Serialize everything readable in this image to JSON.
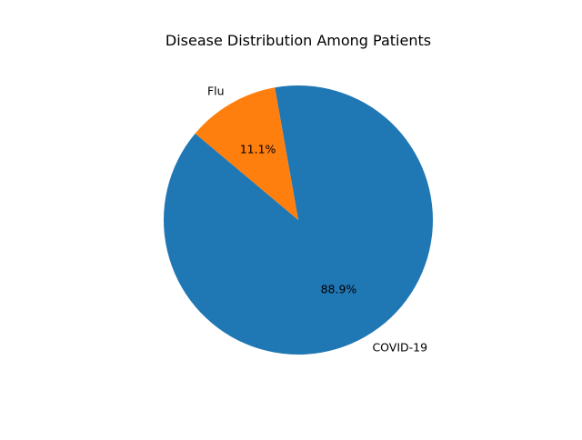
{
  "chart_data": {
    "type": "pie",
    "title": "Disease Distribution Among Patients",
    "labels": [
      "COVID-19",
      "Flu"
    ],
    "values": [
      88.9,
      11.1
    ],
    "percent_labels": [
      "88.9%",
      "11.1%"
    ],
    "colors": [
      "#1f77b4",
      "#ff7f0e"
    ],
    "start_angle_deg": 140,
    "direction": "counterclockwise",
    "legend": "none"
  }
}
